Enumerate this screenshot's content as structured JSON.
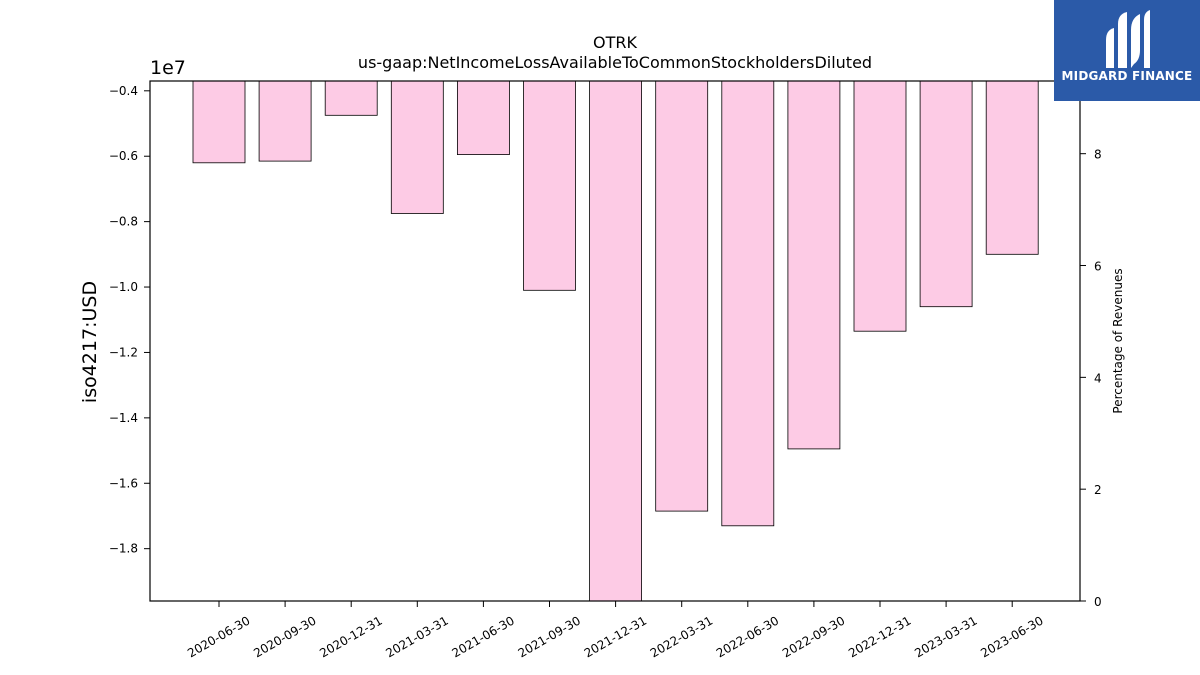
{
  "chart_data": {
    "type": "bar",
    "title": "OTRK",
    "subtitle": "us-gaap:NetIncomeLossAvailableToCommonStockholdersDiluted",
    "ylabel": "iso4217:USD",
    "y2label": "Percentage of Revenues",
    "y_offset_label": "1e7",
    "categories": [
      "2020-06-30",
      "2020-09-30",
      "2020-12-31",
      "2021-03-31",
      "2021-06-30",
      "2021-09-30",
      "2021-12-31",
      "2022-03-31",
      "2022-06-30",
      "2022-09-30",
      "2022-12-31",
      "2023-03-31",
      "2023-06-30"
    ],
    "values": [
      -6200000,
      -6150000,
      -4750000,
      -7750000,
      -5950000,
      -10100000,
      -19600000,
      -16850000,
      -17300000,
      -14950000,
      -11350000,
      -10600000,
      -9000000
    ],
    "ylim": [
      -19600000,
      -3700000
    ],
    "y_ticks": [
      -4000000,
      -6000000,
      -8000000,
      -10000000,
      -12000000,
      -14000000,
      -16000000,
      -18000000
    ],
    "y_tick_labels": [
      "−0.4",
      "−0.6",
      "−0.8",
      "−1.0",
      "−1.2",
      "−1.4",
      "−1.6",
      "−1.8"
    ],
    "y2lim": [
      0,
      9.3
    ],
    "y2_ticks": [
      0,
      2,
      4,
      6,
      8
    ],
    "y2_tick_labels": [
      "0",
      "2",
      "4",
      "6",
      "8"
    ],
    "bar_color": "#fdcbe5",
    "grid": false,
    "legend": "none"
  },
  "logo": {
    "text": "MIDGARD FINANCE",
    "icon": "midgard-logo-icon",
    "background": "#2b5aa8"
  }
}
